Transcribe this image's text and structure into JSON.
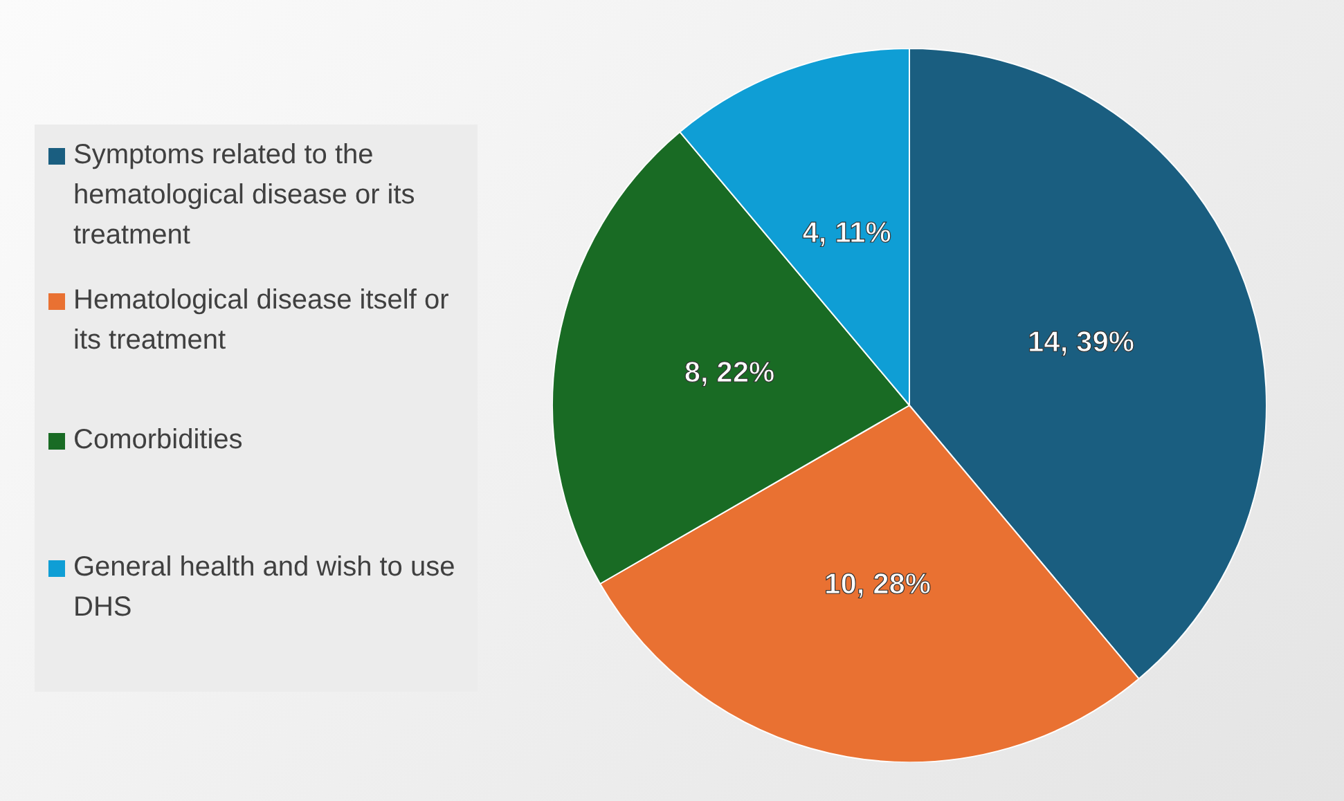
{
  "chart_data": {
    "type": "pie",
    "categories": [
      "Symptoms related to the hematological disease or its treatment",
      "Hematological disease itself or its treatment",
      "Comorbidities",
      "General health and wish to use DHS"
    ],
    "values": [
      14,
      10,
      8,
      4
    ],
    "colors": [
      "#1a5e80",
      "#e97132",
      "#196b24",
      "#0f9ed5"
    ],
    "value_labels": [
      "14, 39%",
      "10, 28%",
      "8, 22%",
      "4, 11%"
    ],
    "legend": "left"
  }
}
